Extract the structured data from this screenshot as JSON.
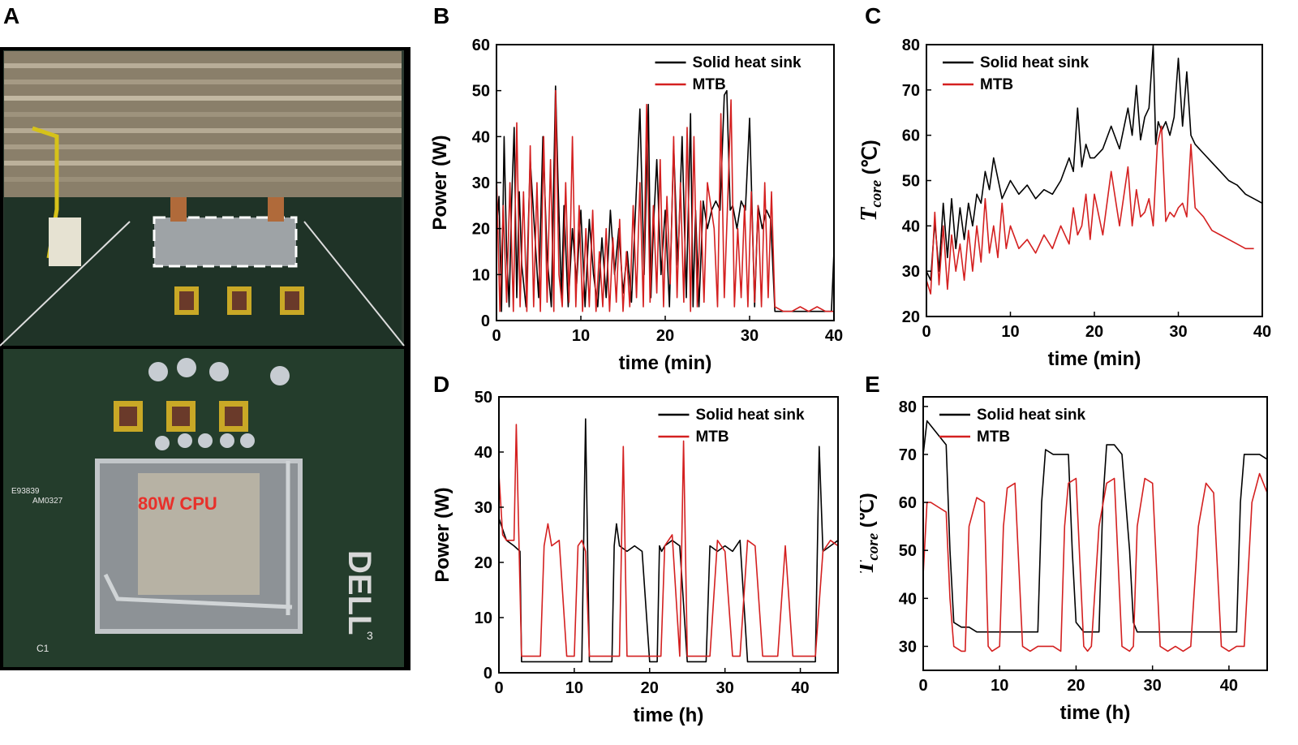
{
  "panels": {
    "a": "A",
    "b": "B",
    "c": "C",
    "d": "D",
    "e": "E"
  },
  "photo": {
    "cpu_label": "80W CPU",
    "board_texts": [
      "E93839",
      "AM0327",
      "DELL",
      "C1",
      "3"
    ]
  },
  "colors": {
    "solid": "#000000",
    "mtb": "#d42020",
    "cpu_label": "#e8302a"
  },
  "chart_data": [
    {
      "id": "B",
      "type": "line",
      "xlabel": "time (min)",
      "ylabel": "Power (W)",
      "xlim": [
        0,
        40
      ],
      "ylim": [
        0,
        60
      ],
      "xticks": [
        0,
        10,
        20,
        30,
        40
      ],
      "yticks": [
        0,
        10,
        20,
        30,
        40,
        50,
        60
      ],
      "legend": "top-right",
      "series": [
        {
          "name": "Solid heat sink",
          "color": "#000000",
          "x": [
            0,
            0.3,
            0.6,
            0.9,
            1.2,
            1.5,
            1.8,
            2.1,
            2.4,
            2.7,
            3,
            3.5,
            4,
            4.5,
            5,
            5.5,
            6,
            6.5,
            7,
            7.3,
            7.7,
            8,
            8.5,
            9,
            9.5,
            10,
            10.5,
            11,
            11.5,
            12,
            12.5,
            13,
            13.5,
            14,
            14.5,
            15,
            15.5,
            16,
            16.5,
            17,
            17.5,
            18,
            18.3,
            18.6,
            19,
            19.5,
            20,
            20.5,
            21,
            21.5,
            22,
            22.5,
            23,
            23.3,
            23.6,
            24,
            24.5,
            25,
            25.5,
            26,
            26.5,
            27,
            27.3,
            27.7,
            28,
            28.5,
            29,
            29.5,
            30,
            30.3,
            30.6,
            31,
            31.5,
            32,
            32.5,
            33,
            34,
            35,
            36,
            37,
            38,
            39,
            39.7,
            40
          ],
          "y": [
            20,
            27,
            2,
            40,
            15,
            3,
            26,
            42,
            5,
            28,
            12,
            3,
            35,
            20,
            5,
            40,
            14,
            3,
            51,
            30,
            5,
            25,
            3,
            20,
            8,
            24,
            3,
            22,
            10,
            3,
            18,
            5,
            24,
            10,
            20,
            6,
            15,
            4,
            25,
            46,
            10,
            47,
            5,
            20,
            35,
            10,
            24,
            3,
            38,
            12,
            40,
            5,
            45,
            3,
            24,
            3,
            26,
            20,
            24,
            26,
            24,
            49,
            50,
            24,
            25,
            20,
            26,
            24,
            44,
            24,
            3,
            25,
            20,
            24,
            22,
            2,
            2,
            2,
            2,
            2,
            2,
            2,
            2,
            15
          ]
        },
        {
          "name": "MTB",
          "color": "#d42020",
          "x": [
            0,
            0.4,
            0.8,
            1.2,
            1.6,
            2,
            2.4,
            2.8,
            3.2,
            3.6,
            4,
            4.4,
            4.8,
            5.2,
            5.6,
            6,
            6.4,
            6.8,
            7,
            7.4,
            7.8,
            8.2,
            8.6,
            9,
            9.4,
            9.8,
            10.2,
            10.6,
            11,
            11.4,
            11.8,
            12.2,
            12.6,
            13,
            13.4,
            13.8,
            14.2,
            14.6,
            15,
            15.4,
            15.8,
            16.2,
            16.6,
            17,
            17.4,
            17.8,
            18.2,
            18.6,
            19,
            19.4,
            19.8,
            20.2,
            20.6,
            21,
            21.4,
            21.8,
            22.2,
            22.6,
            23,
            23.4,
            23.8,
            24.2,
            24.6,
            25,
            25.4,
            25.8,
            26.2,
            26.6,
            27,
            27.4,
            27.8,
            28.2,
            28.6,
            29,
            29.4,
            29.8,
            30.2,
            30.6,
            31,
            31.4,
            31.8,
            32.2,
            32.6,
            33,
            34,
            35,
            36,
            37,
            38,
            39,
            40
          ],
          "y": [
            32,
            2,
            25,
            4,
            30,
            2,
            43,
            3,
            28,
            2,
            38,
            3,
            30,
            2,
            40,
            4,
            35,
            2,
            50,
            10,
            3,
            30,
            4,
            40,
            3,
            25,
            2,
            20,
            3,
            24,
            2,
            15,
            3,
            20,
            2,
            18,
            4,
            22,
            2,
            15,
            3,
            25,
            5,
            30,
            3,
            47,
            4,
            25,
            6,
            35,
            3,
            27,
            8,
            40,
            5,
            30,
            4,
            42,
            2,
            40,
            3,
            26,
            4,
            30,
            25,
            20,
            3,
            45,
            5,
            26,
            48,
            3,
            20,
            5,
            25,
            3,
            28,
            4,
            25,
            3,
            30,
            5,
            28,
            3,
            2,
            2,
            3,
            2,
            3,
            2,
            2
          ]
        }
      ]
    },
    {
      "id": "C",
      "type": "line",
      "xlabel": "time (min)",
      "ylabel": "T",
      "ylabel_sub": "core",
      "ylabel_unit": " (℃)",
      "xlim": [
        0,
        40
      ],
      "ylim": [
        20,
        80
      ],
      "xticks": [
        0,
        10,
        20,
        30,
        40
      ],
      "yticks": [
        20,
        30,
        40,
        50,
        60,
        70,
        80
      ],
      "legend": "top-left",
      "series": [
        {
          "name": "Solid heat sink",
          "color": "#000000",
          "x": [
            0,
            0.5,
            1,
            1.5,
            2,
            2.5,
            3,
            3.5,
            4,
            4.5,
            5,
            5.5,
            6,
            6.5,
            7,
            7.5,
            8,
            9,
            10,
            11,
            12,
            13,
            14,
            15,
            16,
            17,
            17.5,
            18,
            18.5,
            19,
            19.5,
            20,
            21,
            22,
            23,
            24,
            24.5,
            25,
            25.5,
            26,
            26.5,
            27,
            27.3,
            27.6,
            28,
            28.5,
            29,
            29.5,
            30,
            30.5,
            31,
            31.5,
            32,
            33,
            34,
            35,
            36,
            37,
            38,
            39,
            40
          ],
          "y": [
            30,
            28,
            41,
            30,
            45,
            33,
            46,
            35,
            44,
            37,
            45,
            40,
            47,
            45,
            52,
            48,
            55,
            46,
            50,
            47,
            49,
            46,
            48,
            47,
            50,
            55,
            52,
            66,
            53,
            58,
            55,
            55,
            57,
            62,
            57,
            66,
            60,
            71,
            59,
            64,
            66,
            80,
            58,
            63,
            61,
            63,
            60,
            64,
            77,
            62,
            74,
            60,
            58,
            56,
            54,
            52,
            50,
            49,
            47,
            46,
            45
          ]
        },
        {
          "name": "MTB",
          "color": "#d42020",
          "x": [
            0,
            0.5,
            1,
            1.5,
            2,
            2.5,
            3,
            3.5,
            4,
            4.5,
            5,
            5.5,
            6,
            6.5,
            7,
            7.5,
            8,
            8.5,
            9,
            9.5,
            10,
            11,
            12,
            13,
            14,
            15,
            16,
            17,
            17.5,
            18,
            18.5,
            19,
            19.5,
            20,
            21,
            22,
            23,
            24,
            24.5,
            25,
            25.5,
            26,
            26.5,
            27,
            27.5,
            28,
            28.5,
            29,
            29.5,
            30,
            30.5,
            31,
            31.5,
            32,
            33,
            34,
            35,
            36,
            37,
            38,
            39
          ],
          "y": [
            28,
            25,
            43,
            27,
            40,
            26,
            38,
            30,
            36,
            28,
            39,
            30,
            40,
            32,
            46,
            34,
            40,
            33,
            45,
            35,
            40,
            35,
            37,
            34,
            38,
            35,
            40,
            36,
            44,
            38,
            40,
            47,
            37,
            47,
            38,
            52,
            40,
            53,
            40,
            48,
            42,
            43,
            46,
            40,
            58,
            62,
            41,
            43,
            42,
            44,
            45,
            42,
            58,
            44,
            42,
            39,
            38,
            37,
            36,
            35,
            35
          ]
        }
      ]
    },
    {
      "id": "D",
      "type": "line",
      "xlabel": "time (h)",
      "ylabel": "Power (W)",
      "xlim": [
        0,
        45
      ],
      "ylim": [
        0,
        50
      ],
      "xticks": [
        0,
        10,
        20,
        30,
        40
      ],
      "yticks": [
        0,
        10,
        20,
        30,
        40,
        50
      ],
      "legend": "top-right",
      "series": [
        {
          "name": "Solid heat sink",
          "color": "#000000",
          "x": [
            0,
            0.5,
            1,
            2,
            2.8,
            3,
            4,
            5,
            6,
            7,
            8,
            9,
            10,
            11,
            11.5,
            12,
            13,
            14,
            15,
            15.3,
            15.6,
            16,
            17,
            18,
            19,
            20,
            21,
            21.3,
            21.6,
            22,
            23,
            24,
            25,
            26,
            27,
            27.5,
            28,
            29,
            30,
            31,
            32,
            33,
            34,
            35,
            36,
            37,
            38,
            39,
            40,
            41,
            42,
            42.5,
            43,
            44,
            45
          ],
          "y": [
            28,
            26,
            24,
            23,
            22,
            2,
            2,
            2,
            2,
            2,
            2,
            2,
            2,
            2,
            46,
            2,
            2,
            2,
            2,
            23,
            27,
            23,
            22,
            23,
            22,
            2,
            2,
            23,
            22,
            23,
            24,
            23,
            2,
            2,
            2,
            2,
            23,
            22,
            23,
            22,
            24,
            2,
            2,
            2,
            2,
            2,
            2,
            2,
            2,
            2,
            2,
            41,
            22,
            23,
            24
          ]
        },
        {
          "name": "MTB",
          "color": "#d42020",
          "x": [
            0,
            0.5,
            1,
            2,
            2.3,
            3,
            4,
            5,
            5.5,
            6,
            6.5,
            7,
            8,
            9,
            10,
            10.5,
            11,
            11.5,
            12,
            13,
            14,
            15,
            16,
            16.5,
            17,
            18,
            19,
            20,
            21,
            21.5,
            22,
            23,
            24,
            24.5,
            25,
            26,
            27,
            27.5,
            28,
            29,
            30,
            31,
            32,
            33,
            34,
            35,
            36,
            37,
            38,
            39,
            40,
            41,
            42,
            43,
            44,
            45
          ],
          "y": [
            36,
            25,
            24,
            24,
            45,
            3,
            3,
            3,
            3,
            23,
            27,
            23,
            24,
            3,
            3,
            23,
            24,
            22,
            3,
            3,
            3,
            3,
            3,
            41,
            3,
            3,
            3,
            3,
            3,
            3,
            23,
            25,
            3,
            42,
            3,
            3,
            3,
            3,
            3,
            24,
            22,
            3,
            3,
            24,
            23,
            3,
            3,
            3,
            23,
            3,
            3,
            3,
            3,
            22,
            24,
            23
          ]
        }
      ]
    },
    {
      "id": "E",
      "type": "line",
      "xlabel": "time (h)",
      "ylabel": "T",
      "ylabel_sub": "core",
      "ylabel_unit": " (℃)",
      "xlim": [
        0,
        45
      ],
      "ylim": [
        25,
        82
      ],
      "xticks": [
        0,
        10,
        20,
        30,
        40
      ],
      "yticks": [
        30,
        40,
        50,
        60,
        70,
        80
      ],
      "legend": "top-left",
      "series": [
        {
          "name": "Solid heat sink",
          "color": "#000000",
          "x": [
            0,
            0.5,
            1,
            2,
            3,
            3.5,
            4,
            5,
            6,
            7,
            8,
            9,
            10,
            11,
            12,
            13,
            14,
            15,
            15.5,
            16,
            17,
            18,
            19,
            19.5,
            20,
            21,
            22,
            23,
            23.5,
            24,
            25,
            26,
            27,
            27.5,
            28,
            29,
            30,
            31,
            32,
            33,
            34,
            35,
            36,
            37,
            38,
            39,
            40,
            41,
            41.5,
            42,
            43,
            44,
            45
          ],
          "y": [
            70,
            77,
            76,
            74,
            72,
            50,
            35,
            34,
            34,
            33,
            33,
            33,
            33,
            33,
            33,
            33,
            33,
            33,
            60,
            71,
            70,
            70,
            70,
            50,
            35,
            33,
            33,
            33,
            60,
            72,
            72,
            70,
            50,
            35,
            33,
            33,
            33,
            33,
            33,
            33,
            33,
            33,
            33,
            33,
            33,
            33,
            33,
            33,
            60,
            70,
            70,
            70,
            69
          ]
        },
        {
          "name": "MTB",
          "color": "#d42020",
          "x": [
            0,
            0.5,
            1,
            2,
            3,
            3.5,
            4,
            5,
            5.5,
            6,
            7,
            8,
            8.5,
            9,
            10,
            10.5,
            11,
            12,
            13,
            14,
            15,
            16,
            17,
            18,
            18.5,
            19,
            20,
            21,
            21.5,
            22,
            23,
            24,
            25,
            26,
            27,
            27.5,
            28,
            29,
            30,
            31,
            32,
            33,
            34,
            35,
            36,
            37,
            38,
            39,
            40,
            41,
            42,
            43,
            44,
            45
          ],
          "y": [
            45,
            60,
            60,
            59,
            58,
            40,
            30,
            29,
            29,
            55,
            61,
            60,
            30,
            29,
            30,
            55,
            63,
            64,
            30,
            29,
            30,
            30,
            30,
            29,
            55,
            64,
            65,
            30,
            29,
            30,
            55,
            64,
            65,
            30,
            29,
            30,
            55,
            65,
            64,
            30,
            29,
            30,
            29,
            30,
            55,
            64,
            62,
            30,
            29,
            30,
            30,
            60,
            66,
            62
          ]
        }
      ]
    }
  ]
}
